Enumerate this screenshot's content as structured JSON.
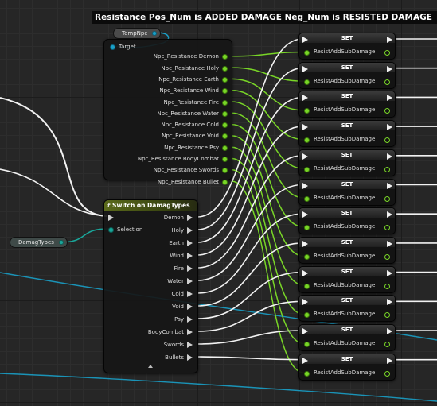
{
  "comment": {
    "title": "Resistance Pos_Num is ADDED DAMAGE Neg_Num is RESISTED DAMAGE"
  },
  "temp_npc": {
    "label": "TempNpc"
  },
  "damag_types": {
    "label": "DamagTypes"
  },
  "get_node": {
    "target_label": "Target",
    "outputs": [
      "Npc_Resistance Demon",
      "Npc_Resistance Holy",
      "Npc_Resistance Earth",
      "Npc_Resistance Wind",
      "Npc_Resistance Fire",
      "Npc_Resistance Water",
      "Npc_Resistance Cold",
      "Npc_Resistance Void",
      "Npc_Resistance Psy",
      "Npc_Resistance BodyCombat",
      "Npc_Resistance Swords",
      "Npc_Resistance Bullet"
    ]
  },
  "switch_node": {
    "icon": "function-icon",
    "title": "Switch on DamagTypes",
    "selection_label": "Selection",
    "outputs": [
      "Demon",
      "Holy",
      "Earth",
      "Wind",
      "Fire",
      "Water",
      "Cold",
      "Void",
      "Psy",
      "BodyCombat",
      "Swords",
      "Bullets"
    ]
  },
  "set_nodes": [
    {
      "title": "SET",
      "var": "ResistAddSubDamage"
    },
    {
      "title": "SET",
      "var": "ResistAddSubDamage"
    },
    {
      "title": "SET",
      "var": "ResistAddSubDamage"
    },
    {
      "title": "SET",
      "var": "ResistAddSubDamage"
    },
    {
      "title": "SET",
      "var": "ResistAddSubDamage"
    },
    {
      "title": "SET",
      "var": "ResistAddSubDamage"
    },
    {
      "title": "SET",
      "var": "ResistAddSubDamage"
    },
    {
      "title": "SET",
      "var": "ResistAddSubDamage"
    },
    {
      "title": "SET",
      "var": "ResistAddSubDamage"
    },
    {
      "title": "SET",
      "var": "ResistAddSubDamage"
    },
    {
      "title": "SET",
      "var": "ResistAddSubDamage"
    },
    {
      "title": "SET",
      "var": "ResistAddSubDamage"
    }
  ],
  "colors": {
    "float_pin": "#79d627",
    "object_pin": "#1aa0c8",
    "enum_pin": "#1aa69a",
    "exec_wire": "#f2f2f2"
  }
}
